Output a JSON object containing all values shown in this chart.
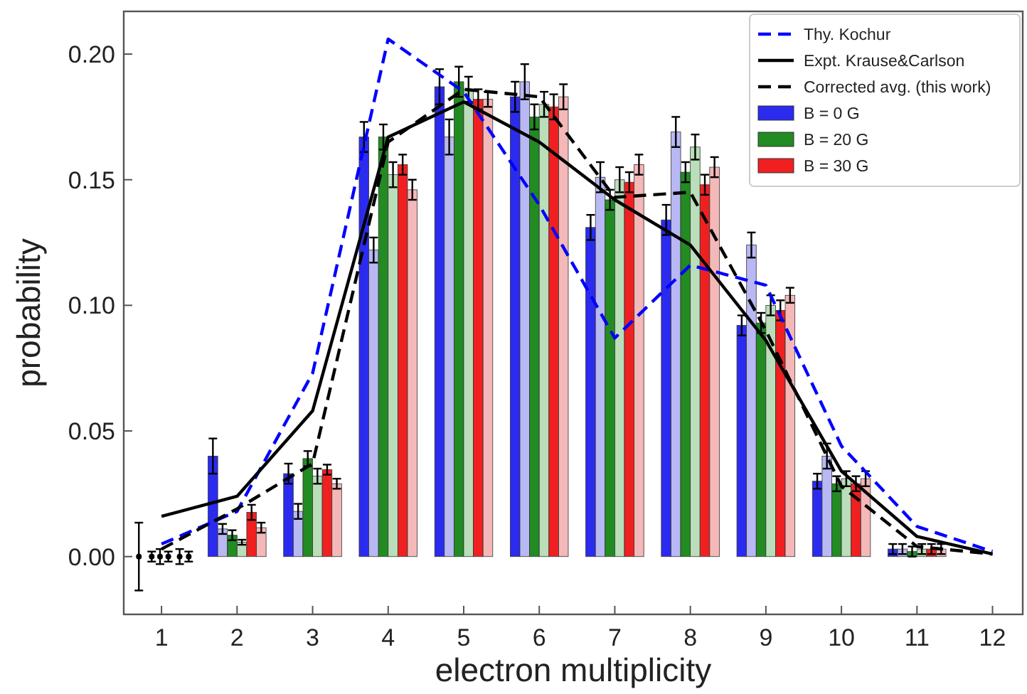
{
  "chart_data": {
    "type": "bar",
    "xlabel": "electron multiplicity",
    "ylabel": "probability",
    "xlim": [
      0.5,
      12.4
    ],
    "xticks": [
      1,
      2,
      3,
      4,
      5,
      6,
      7,
      8,
      9,
      10,
      11,
      12
    ],
    "ylim": [
      -0.023,
      0.217
    ],
    "yticks": [
      {
        "value": 0,
        "label": "0.00"
      },
      {
        "value": 0.05,
        "label": "0.05"
      },
      {
        "value": 0.1,
        "label": "0.10"
      },
      {
        "value": 0.15,
        "label": "0.15"
      },
      {
        "value": 0.2,
        "label": "0.20"
      }
    ],
    "legend": "top right",
    "grid": false,
    "series": [
      {
        "name": "Thy. Kochur",
        "type": "line",
        "line_style": "dashed",
        "color": "#0000ff",
        "x": [
          1,
          2,
          3,
          4,
          5,
          6,
          7,
          8,
          9,
          10,
          11,
          12
        ],
        "values": [
          0.005,
          0.018,
          0.073,
          0.206,
          0.185,
          0.14,
          0.087,
          0.116,
          0.108,
          0.044,
          0.012,
          0.002
        ]
      },
      {
        "name": "Expt. Krause&Carlson",
        "type": "line",
        "line_style": "solid",
        "color": "#000000",
        "x": [
          1,
          2,
          3,
          4,
          5,
          6,
          7,
          8,
          9,
          10,
          11,
          12
        ],
        "values": [
          0.016,
          0.024,
          0.058,
          0.167,
          0.181,
          0.165,
          0.142,
          0.124,
          0.086,
          0.034,
          0.008,
          0.001
        ]
      },
      {
        "name": "Corrected avg. (this work)",
        "type": "line",
        "line_style": "dashed",
        "color": "#000000",
        "x": [
          1,
          2,
          3,
          4,
          5,
          6,
          7,
          8,
          9,
          10,
          11,
          12
        ],
        "values": [
          0.003,
          0.019,
          0.037,
          0.165,
          0.186,
          0.183,
          0.143,
          0.145,
          0.09,
          0.028,
          0.004,
          0.001
        ]
      },
      {
        "type": "scatter",
        "marker": "circle",
        "color": "#000000",
        "x": [
          0.7,
          0.87,
          0.98,
          1.09,
          1.24,
          1.36
        ],
        "values": [
          0,
          0,
          0,
          0,
          0,
          0
        ],
        "errors": [
          0.0135,
          0.002,
          0.003,
          0.002,
          0.003,
          0.002
        ]
      },
      {
        "name": "B = 0 G",
        "color": "#2b2bf0",
        "x": [
          2,
          3,
          4,
          5,
          6,
          7,
          8,
          9,
          10,
          11
        ],
        "values": [
          0.04,
          0.033,
          0.167,
          0.187,
          0.183,
          0.131,
          0.134,
          0.092,
          0.03,
          0.003
        ],
        "errors": [
          0.007,
          0.004,
          0.006,
          0.007,
          0.006,
          0.005,
          0.006,
          0.004,
          0.003,
          0.002
        ]
      },
      {
        "color": "#b8b8f4",
        "x": [
          2,
          3,
          4,
          5,
          6,
          7,
          8,
          9,
          10,
          11
        ],
        "values": [
          0.011,
          0.018,
          0.122,
          0.167,
          0.189,
          0.151,
          0.169,
          0.124,
          0.04,
          0.003
        ],
        "errors": [
          0.002,
          0.003,
          0.005,
          0.007,
          0.007,
          0.006,
          0.006,
          0.005,
          0.005,
          0.002
        ]
      },
      {
        "name": "B = 20 G",
        "color": "#228b22",
        "x": [
          2,
          3,
          4,
          5,
          6,
          7,
          8,
          9,
          10,
          11
        ],
        "values": [
          0.0085,
          0.039,
          0.167,
          0.189,
          0.175,
          0.142,
          0.153,
          0.093,
          0.029,
          0.002
        ],
        "errors": [
          0.002,
          0.003,
          0.005,
          0.006,
          0.005,
          0.004,
          0.004,
          0.004,
          0.003,
          0.002
        ]
      },
      {
        "color": "#b9deb9",
        "x": [
          2,
          3,
          4,
          5,
          6,
          7,
          8,
          9,
          10,
          11
        ],
        "values": [
          0.0057,
          0.032,
          0.152,
          0.186,
          0.18,
          0.15,
          0.163,
          0.1,
          0.031,
          0.003
        ],
        "errors": [
          0.001,
          0.003,
          0.005,
          0.005,
          0.005,
          0.005,
          0.005,
          0.004,
          0.003,
          0.002
        ]
      },
      {
        "name": "B = 30 G",
        "color": "#f02020",
        "x": [
          2,
          3,
          4,
          5,
          6,
          7,
          8,
          9,
          10,
          11
        ],
        "values": [
          0.0176,
          0.0346,
          0.156,
          0.182,
          0.179,
          0.149,
          0.148,
          0.098,
          0.029,
          0.003
        ],
        "errors": [
          0.003,
          0.002,
          0.004,
          0.004,
          0.005,
          0.004,
          0.004,
          0.004,
          0.003,
          0.002
        ]
      },
      {
        "color": "#f4b8b8",
        "x": [
          2,
          3,
          4,
          5,
          6,
          7,
          8,
          9,
          10,
          11
        ],
        "values": [
          0.0115,
          0.029,
          0.146,
          0.182,
          0.183,
          0.156,
          0.155,
          0.104,
          0.031,
          0.003
        ],
        "errors": [
          0.002,
          0.002,
          0.004,
          0.003,
          0.005,
          0.004,
          0.004,
          0.003,
          0.003,
          0.002
        ]
      }
    ]
  }
}
